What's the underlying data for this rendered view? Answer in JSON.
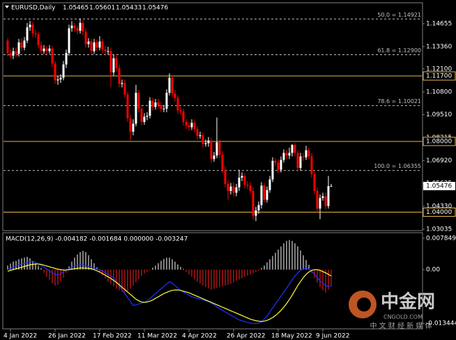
{
  "chart_data": [
    {
      "type": "candlestick",
      "title": "EURUSD,Daily",
      "up_color": "#ffffff",
      "down_color": "#ff0000",
      "open": [
        1.137,
        1.13,
        1.1285,
        1.131,
        1.1295,
        1.136,
        1.133,
        1.137,
        1.1445,
        1.146,
        1.141,
        1.1405,
        1.1345,
        1.131,
        1.1325,
        1.131,
        1.1325,
        1.124,
        1.1145,
        1.115,
        1.116,
        1.1235,
        1.13,
        1.144,
        1.1455,
        1.144,
        1.1425,
        1.147,
        1.142,
        1.135,
        1.1365,
        1.131,
        1.136,
        1.133,
        1.1365,
        1.132,
        1.131,
        1.131,
        1.119,
        1.127,
        1.1215,
        1.1125,
        1.113,
        1.1065,
        1.093,
        1.0855,
        1.09,
        1.1075,
        1.0985,
        1.091,
        1.094,
        1.0945,
        1.103,
        1.0995,
        1.102,
        1.1005,
        1.0985,
        1.0985,
        1.1075,
        1.116,
        1.107,
        1.1045,
        1.0975,
        1.097,
        1.091,
        1.089,
        1.088,
        1.0905,
        1.087,
        1.083,
        1.0835,
        1.0785,
        1.079,
        1.0805,
        1.07,
        1.072,
        1.0795,
        1.0725,
        1.064,
        1.056,
        1.052,
        1.0545,
        1.051,
        1.054,
        1.0595,
        1.0605,
        1.0555,
        1.055,
        1.052,
        1.038,
        1.041,
        1.044,
        1.055,
        1.047,
        1.0525,
        1.0585,
        1.069,
        1.068,
        1.064,
        1.0695,
        1.0735,
        1.072,
        1.0735,
        1.078,
        1.0735,
        1.065,
        1.0715,
        1.071,
        1.075,
        1.0715,
        1.0615,
        1.052,
        1.042,
        1.048,
        1.049,
        1.0435,
        1.05465
      ],
      "high": [
        1.1385,
        1.132,
        1.133,
        1.133,
        1.138,
        1.1385,
        1.139,
        1.147,
        1.1483,
        1.1475,
        1.143,
        1.142,
        1.1365,
        1.1345,
        1.134,
        1.1345,
        1.134,
        1.1255,
        1.117,
        1.118,
        1.1255,
        1.132,
        1.146,
        1.148,
        1.147,
        1.1455,
        1.1495,
        1.1485,
        1.144,
        1.1385,
        1.138,
        1.138,
        1.1375,
        1.1395,
        1.138,
        1.134,
        1.1335,
        1.133,
        1.129,
        1.1285,
        1.1235,
        1.115,
        1.115,
        1.108,
        1.095,
        1.0925,
        1.112,
        1.109,
        1.1,
        1.096,
        1.0965,
        1.105,
        1.1045,
        1.104,
        1.104,
        1.1025,
        1.1005,
        1.1095,
        1.1185,
        1.1175,
        1.109,
        1.106,
        1.0995,
        1.0985,
        1.0925,
        1.091,
        1.0925,
        1.092,
        1.0885,
        1.0855,
        1.085,
        1.081,
        1.0825,
        1.082,
        1.074,
        1.0935,
        1.081,
        1.0745,
        1.066,
        1.058,
        1.0565,
        1.057,
        1.056,
        1.064,
        1.0625,
        1.062,
        1.0575,
        1.057,
        1.054,
        1.043,
        1.046,
        1.057,
        1.0565,
        1.0545,
        1.0605,
        1.071,
        1.0705,
        1.07,
        1.0715,
        1.0755,
        1.075,
        1.0765,
        1.0785,
        1.079,
        1.075,
        1.0735,
        1.0735,
        1.0775,
        1.0765,
        1.0735,
        1.063,
        1.054,
        1.05,
        1.051,
        1.051,
        1.0605,
        1.05601
      ],
      "low": [
        1.128,
        1.127,
        1.1265,
        1.1275,
        1.128,
        1.131,
        1.1315,
        1.1355,
        1.1425,
        1.139,
        1.1385,
        1.1325,
        1.129,
        1.1295,
        1.129,
        1.1295,
        1.122,
        1.1125,
        1.112,
        1.113,
        1.1145,
        1.1215,
        1.1285,
        1.142,
        1.142,
        1.1405,
        1.141,
        1.14,
        1.133,
        1.133,
        1.129,
        1.1295,
        1.131,
        1.1315,
        1.13,
        1.129,
        1.129,
        1.1105,
        1.117,
        1.1195,
        1.1105,
        1.1105,
        1.1045,
        1.091,
        1.0805,
        1.0835,
        1.0885,
        1.0965,
        1.089,
        1.0895,
        1.092,
        1.093,
        1.0975,
        1.098,
        1.0985,
        1.0965,
        1.0965,
        1.0965,
        1.106,
        1.105,
        1.1025,
        1.0955,
        1.095,
        1.089,
        1.087,
        1.086,
        1.0865,
        1.085,
        1.081,
        1.0815,
        1.0765,
        1.077,
        1.077,
        1.068,
        1.0685,
        1.0705,
        1.0705,
        1.062,
        1.054,
        1.047,
        1.05,
        1.049,
        1.049,
        1.052,
        1.0575,
        1.0535,
        1.053,
        1.05,
        1.0355,
        1.035,
        1.039,
        1.042,
        1.0455,
        1.0455,
        1.051,
        1.057,
        1.066,
        1.062,
        1.0625,
        1.068,
        1.07,
        1.07,
        1.0715,
        1.0715,
        1.063,
        1.0635,
        1.069,
        1.0695,
        1.07,
        1.0595,
        1.05,
        1.0395,
        1.036,
        1.0465,
        1.0415,
        1.042,
        1.05433
      ],
      "close": [
        1.13,
        1.1285,
        1.131,
        1.1295,
        1.136,
        1.133,
        1.137,
        1.1445,
        1.146,
        1.141,
        1.1405,
        1.1345,
        1.131,
        1.1325,
        1.131,
        1.1325,
        1.124,
        1.1145,
        1.115,
        1.116,
        1.1235,
        1.13,
        1.144,
        1.1455,
        1.144,
        1.1425,
        1.147,
        1.142,
        1.135,
        1.1365,
        1.131,
        1.136,
        1.133,
        1.1365,
        1.132,
        1.131,
        1.131,
        1.119,
        1.127,
        1.1215,
        1.1125,
        1.113,
        1.1065,
        1.093,
        1.0855,
        1.09,
        1.1075,
        1.0985,
        1.091,
        1.094,
        1.0945,
        1.103,
        1.0995,
        1.102,
        1.1005,
        1.0985,
        1.0985,
        1.1075,
        1.116,
        1.107,
        1.1045,
        1.0975,
        1.097,
        1.091,
        1.089,
        1.088,
        1.0905,
        1.087,
        1.083,
        1.0835,
        1.0785,
        1.079,
        1.0805,
        1.07,
        1.072,
        1.0795,
        1.0725,
        1.064,
        1.056,
        1.052,
        1.0545,
        1.051,
        1.054,
        1.0595,
        1.0605,
        1.0555,
        1.055,
        1.052,
        1.038,
        1.041,
        1.044,
        1.055,
        1.047,
        1.0525,
        1.0585,
        1.069,
        1.068,
        1.064,
        1.0695,
        1.0735,
        1.072,
        1.0735,
        1.078,
        1.0735,
        1.065,
        1.0715,
        1.071,
        1.075,
        1.0715,
        1.0615,
        1.052,
        1.042,
        1.048,
        1.049,
        1.0435,
        1.0547,
        1.05476
      ],
      "ylim": [
        1.02956,
        1.15837
      ],
      "yticks": [
        1.14655,
        {
          "value": 1.1336,
          "label": "1.13360"
        },
        {
          "value": 1.121,
          "label": "1.12100"
        },
        {
          "value": 1.108,
          "label": "1.10800"
        },
        {
          "value": 1.0951,
          "label": "1.09510"
        },
        1.08215,
        {
          "value": 1.0692,
          "label": "1.06920"
        },
        1.05625,
        {
          "value": 1.0433,
          "label": "1.04330"
        },
        1.03035
      ],
      "fib_color": "#c0c0c0",
      "fib_levels": [
        {
          "value": 1.14921,
          "label": "50.0 = 1.14921"
        },
        {
          "value": 1.129,
          "label": "61.8 = 1.12900"
        },
        {
          "value": 1.10021,
          "label": "78.6 = 1.10021"
        },
        {
          "value": 1.06355,
          "label": "100.0 = 1.06355"
        }
      ],
      "level_color": "#e8b84a",
      "levels": [
        {
          "value": 1.117,
          "label": "1.11700"
        },
        {
          "value": 1.08,
          "label": "1.08000"
        },
        {
          "value": 1.04,
          "label": "1.04000"
        }
      ]
    },
    {
      "type": "macd",
      "title": "MACD(12,26,9) -0.004182 -0.001684 0.000000 -0.003247",
      "ylim": [
        -0.01483,
        0.00924
      ],
      "yticks": [
        0.007849,
        {
          "value": 0,
          "label": "0.00"
        },
        -0.013444
      ],
      "xticks": [
        {
          "value": 1,
          "label": "4 Jan 2022"
        },
        {
          "value": 17,
          "label": "26 Jan 2022"
        },
        {
          "value": 33,
          "label": "17 Feb 2022"
        },
        {
          "value": 49,
          "label": "11 Mar 2022"
        },
        {
          "value": 65,
          "label": "4 Apr 2022"
        },
        {
          "value": 81,
          "label": "26 Apr 2022"
        },
        {
          "value": 97,
          "label": "18 May 2022"
        },
        {
          "value": 113,
          "label": "9 Jun 2022"
        }
      ],
      "series": [
        {
          "kind": "histogram",
          "color": "#ffffff",
          "negative_color": "#ff2020",
          "values": [
            0.001,
            0.0015,
            0.002,
            0.0022,
            0.0026,
            0.0028,
            0.003,
            0.0032,
            0.0028,
            0.0022,
            0.0016,
            0.001,
            0.0004,
            -0.0008,
            -0.0018,
            -0.0026,
            -0.0034,
            -0.004,
            -0.0038,
            -0.003,
            -0.002,
            -0.0008,
            0.0008,
            0.002,
            0.003,
            0.0038,
            0.0044,
            0.0047,
            0.0044,
            0.0036,
            0.0026,
            0.0016,
            0.0006,
            -0.0006,
            -0.0014,
            -0.0022,
            -0.003,
            -0.0036,
            -0.0042,
            -0.0048,
            -0.0052,
            -0.0055,
            -0.0057,
            -0.0054,
            -0.0048,
            -0.004,
            -0.0032,
            -0.0024,
            -0.0016,
            -0.001,
            -0.0005,
            -0.0002,
            0.0005,
            0.001,
            0.0016,
            0.0022,
            0.0027,
            0.003,
            0.003,
            0.0026,
            0.002,
            0.0013,
            0.0007,
            0.0002,
            -0.0006,
            -0.0012,
            -0.0018,
            -0.0024,
            -0.003,
            -0.0035,
            -0.004,
            -0.0044,
            -0.0047,
            -0.005,
            -0.0048,
            -0.0046,
            -0.0044,
            -0.0042,
            -0.004,
            -0.0038,
            -0.0035,
            -0.0032,
            -0.0028,
            -0.0025,
            -0.0022,
            -0.0018,
            -0.0015,
            -0.0012,
            -0.0009,
            -0.0006,
            -0.0003,
            0.0004,
            0.001,
            0.0018,
            0.0026,
            0.0034,
            0.0042,
            0.005,
            0.0058,
            0.0066,
            0.0072,
            0.0074,
            0.0072,
            0.0066,
            0.0058,
            0.0048,
            0.0036,
            0.0024,
            0.0012,
            -0.0008,
            -0.002,
            -0.0032,
            -0.0044,
            -0.0052,
            -0.0058,
            -0.005,
            -0.0042
          ]
        },
        {
          "kind": "line",
          "color": "#1e32ff",
          "values": [
            0.0,
            0.0003,
            0.0006,
            0.0009,
            0.0012,
            0.0014,
            0.0016,
            0.0018,
            0.002,
            0.002,
            0.0018,
            0.0014,
            0.001,
            0.0006,
            0.0002,
            -0.0003,
            -0.0008,
            -0.0012,
            -0.0014,
            -0.001,
            -0.0006,
            -0.0002,
            0.0002,
            0.0006,
            0.0009,
            0.0011,
            0.0012,
            0.0012,
            0.001,
            0.0008,
            0.0006,
            0.0004,
            0.0002,
            0.0,
            -0.0004,
            -0.0008,
            -0.0012,
            -0.0016,
            -0.002,
            -0.003,
            -0.004,
            -0.005,
            -0.006,
            -0.007,
            -0.008,
            -0.009,
            -0.0088,
            -0.0086,
            -0.0084,
            -0.0082,
            -0.0078,
            -0.0072,
            -0.0066,
            -0.006,
            -0.0054,
            -0.0048,
            -0.0042,
            -0.0036,
            -0.003,
            -0.0034,
            -0.004,
            -0.0046,
            -0.0052,
            -0.0056,
            -0.006,
            -0.0064,
            -0.0068,
            -0.007,
            -0.0072,
            -0.0074,
            -0.0076,
            -0.0078,
            -0.008,
            -0.0084,
            -0.0088,
            -0.0094,
            -0.0098,
            -0.0102,
            -0.0106,
            -0.011,
            -0.0114,
            -0.0118,
            -0.0122,
            -0.0126,
            -0.0128,
            -0.013,
            -0.0132,
            -0.0134,
            -0.0135,
            -0.0135,
            -0.0134,
            -0.013,
            -0.0124,
            -0.0116,
            -0.0106,
            -0.0096,
            -0.0086,
            -0.0076,
            -0.0066,
            -0.0056,
            -0.0046,
            -0.0036,
            -0.0026,
            -0.0016,
            -0.0008,
            -0.0002,
            0.0002,
            0.0004,
            0.0002,
            -0.0004,
            -0.0012,
            -0.002,
            -0.0028,
            -0.0034,
            -0.004,
            -0.0042,
            -0.0042
          ]
        },
        {
          "kind": "line",
          "color": "#ffff40",
          "values": [
            -0.0004,
            -0.0002,
            0.0,
            0.0002,
            0.0004,
            0.0006,
            0.0008,
            0.001,
            0.0012,
            0.0013,
            0.0014,
            0.0014,
            0.0013,
            0.0011,
            0.0009,
            0.0007,
            0.0005,
            0.0003,
            0.0001,
            0.0,
            -0.0001,
            -0.0001,
            0.0,
            0.0001,
            0.0002,
            0.0003,
            0.0004,
            0.0004,
            0.0004,
            0.0003,
            0.0002,
            0.0,
            -0.0003,
            -0.0006,
            -0.001,
            -0.0014,
            -0.0018,
            -0.0022,
            -0.0027,
            -0.0032,
            -0.0038,
            -0.0044,
            -0.005,
            -0.0056,
            -0.0062,
            -0.0068,
            -0.0074,
            -0.0078,
            -0.0081,
            -0.0082,
            -0.0081,
            -0.0079,
            -0.0076,
            -0.0072,
            -0.0068,
            -0.0064,
            -0.006,
            -0.0057,
            -0.0054,
            -0.0052,
            -0.0051,
            -0.0051,
            -0.0052,
            -0.0054,
            -0.0056,
            -0.0058,
            -0.0061,
            -0.0064,
            -0.0067,
            -0.007,
            -0.0073,
            -0.0076,
            -0.0079,
            -0.0082,
            -0.0085,
            -0.0088,
            -0.0091,
            -0.0094,
            -0.0097,
            -0.01,
            -0.0103,
            -0.0106,
            -0.0109,
            -0.0112,
            -0.0115,
            -0.0118,
            -0.0121,
            -0.0124,
            -0.0126,
            -0.0128,
            -0.0129,
            -0.013,
            -0.0129,
            -0.0127,
            -0.0124,
            -0.012,
            -0.0115,
            -0.0109,
            -0.0102,
            -0.0094,
            -0.0085,
            -0.0075,
            -0.0064,
            -0.0052,
            -0.004,
            -0.003,
            -0.002,
            -0.0012,
            -0.0006,
            -0.0002,
            0.0,
            0.0,
            -0.0002,
            -0.0005,
            -0.0008,
            -0.0012,
            -0.0016
          ]
        }
      ]
    }
  ],
  "watermark": {
    "logo_text": "中金网",
    "site": "CNGOLD.COM",
    "tagline": "中 文 财 经 新 媒 体"
  }
}
